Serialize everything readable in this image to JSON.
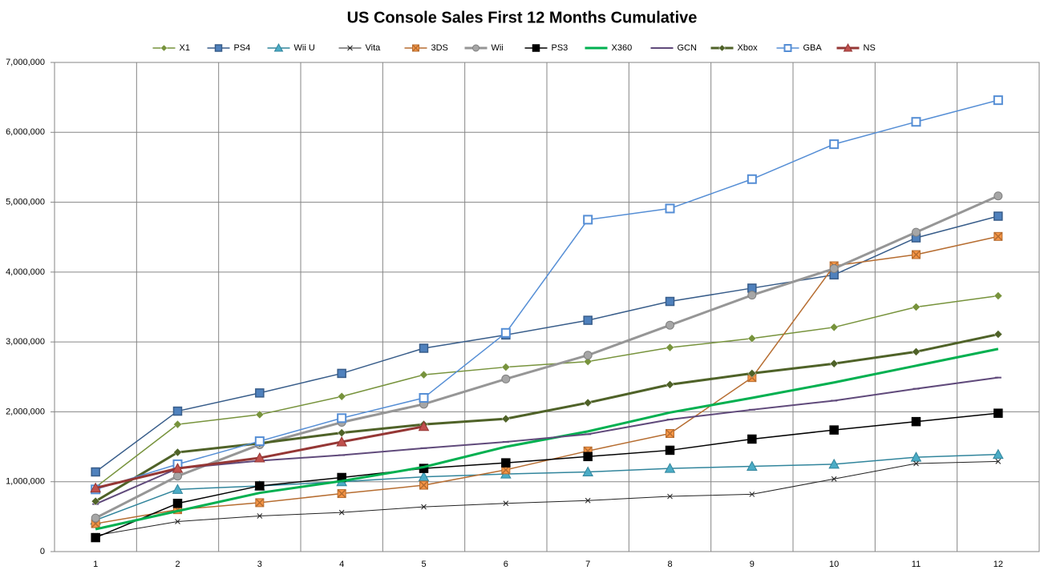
{
  "chart_data": {
    "type": "line",
    "title": "US Console Sales First 12 Months Cumulative",
    "categories": [
      "1",
      "2",
      "3",
      "4",
      "5",
      "6",
      "7",
      "8",
      "9",
      "10",
      "11",
      "12"
    ],
    "ylim": [
      0,
      7000000
    ],
    "yticks": [
      0,
      {
        "value": 1000000,
        "label": "1,000,000"
      },
      {
        "value": 2000000,
        "label": "2,000,000"
      },
      {
        "value": 3000000,
        "label": "3,000,000"
      },
      {
        "value": 4000000,
        "label": "4,000,000"
      },
      {
        "value": 5000000,
        "label": "5,000,000"
      },
      {
        "value": 6000000,
        "label": "6,000,000"
      },
      {
        "value": 7000000,
        "label": "7,000,000"
      }
    ],
    "grid": true,
    "legend": "top",
    "series": [
      {
        "name": "X1",
        "color": "#77933c",
        "marker": "diamond",
        "width": 1.5,
        "values": [
          920000,
          1820000,
          1960000,
          2220000,
          2530000,
          2640000,
          2720000,
          2920000,
          3050000,
          3210000,
          3500000,
          3660000
        ]
      },
      {
        "name": "PS4",
        "color": "#385d8a",
        "marker": "square",
        "width": 1.5,
        "values": [
          1140000,
          2010000,
          2270000,
          2550000,
          2910000,
          3100000,
          3310000,
          3580000,
          3770000,
          3960000,
          4490000,
          4800000
        ]
      },
      {
        "name": "Wii U",
        "color": "#31859c",
        "marker": "triangle",
        "width": 1.5,
        "values": [
          450000,
          890000,
          940000,
          1000000,
          1070000,
          1110000,
          1140000,
          1190000,
          1220000,
          1250000,
          1350000,
          1390000
        ]
      },
      {
        "name": "Vita",
        "color": "#222222",
        "marker": "x",
        "width": 1,
        "values": [
          230000,
          430000,
          510000,
          560000,
          640000,
          690000,
          730000,
          790000,
          820000,
          1040000,
          1260000,
          1290000
        ]
      },
      {
        "name": "3DS",
        "color": "#b66d31",
        "marker": "xsquare",
        "width": 1.5,
        "values": [
          400000,
          600000,
          700000,
          830000,
          950000,
          1170000,
          1440000,
          1690000,
          2490000,
          4090000,
          4250000,
          4510000
        ]
      },
      {
        "name": "Wii",
        "color": "#969696",
        "marker": "circle",
        "width": 3,
        "values": [
          480000,
          1080000,
          1530000,
          1850000,
          2110000,
          2470000,
          2810000,
          3240000,
          3670000,
          4050000,
          4570000,
          5090000
        ]
      },
      {
        "name": "PS3",
        "color": "#000000",
        "marker": "square",
        "width": 1.5,
        "values": [
          200000,
          690000,
          940000,
          1060000,
          1190000,
          1270000,
          1360000,
          1450000,
          1610000,
          1740000,
          1860000,
          1980000
        ]
      },
      {
        "name": "X360",
        "color": "#00b050",
        "marker": "none",
        "width": 3,
        "values": [
          320000,
          580000,
          840000,
          1010000,
          1210000,
          1500000,
          1720000,
          1990000,
          2200000,
          2420000,
          2660000,
          2900000
        ]
      },
      {
        "name": "GCN",
        "color": "#604a7b",
        "marker": "dash",
        "width": 2,
        "values": [
          680000,
          1190000,
          1300000,
          1380000,
          1480000,
          1570000,
          1680000,
          1890000,
          2030000,
          2160000,
          2330000,
          2490000
        ]
      },
      {
        "name": "Xbox",
        "color": "#4f6228",
        "marker": "diamond",
        "width": 3,
        "values": [
          720000,
          1420000,
          1550000,
          1700000,
          1820000,
          1900000,
          2130000,
          2390000,
          2550000,
          2690000,
          2860000,
          3110000
        ]
      },
      {
        "name": "GBA",
        "color": "#558ed5",
        "marker": "hollowsquare",
        "width": 1.5,
        "values": [
          890000,
          1250000,
          1580000,
          1910000,
          2200000,
          3130000,
          4750000,
          4910000,
          5330000,
          5830000,
          6150000,
          6460000
        ]
      },
      {
        "name": "NS",
        "color": "#953735",
        "marker": "triangle",
        "width": 3,
        "values": [
          910000,
          1190000,
          1340000,
          1570000,
          1790000,
          null,
          null,
          null,
          null,
          null,
          null,
          null
        ]
      }
    ]
  }
}
